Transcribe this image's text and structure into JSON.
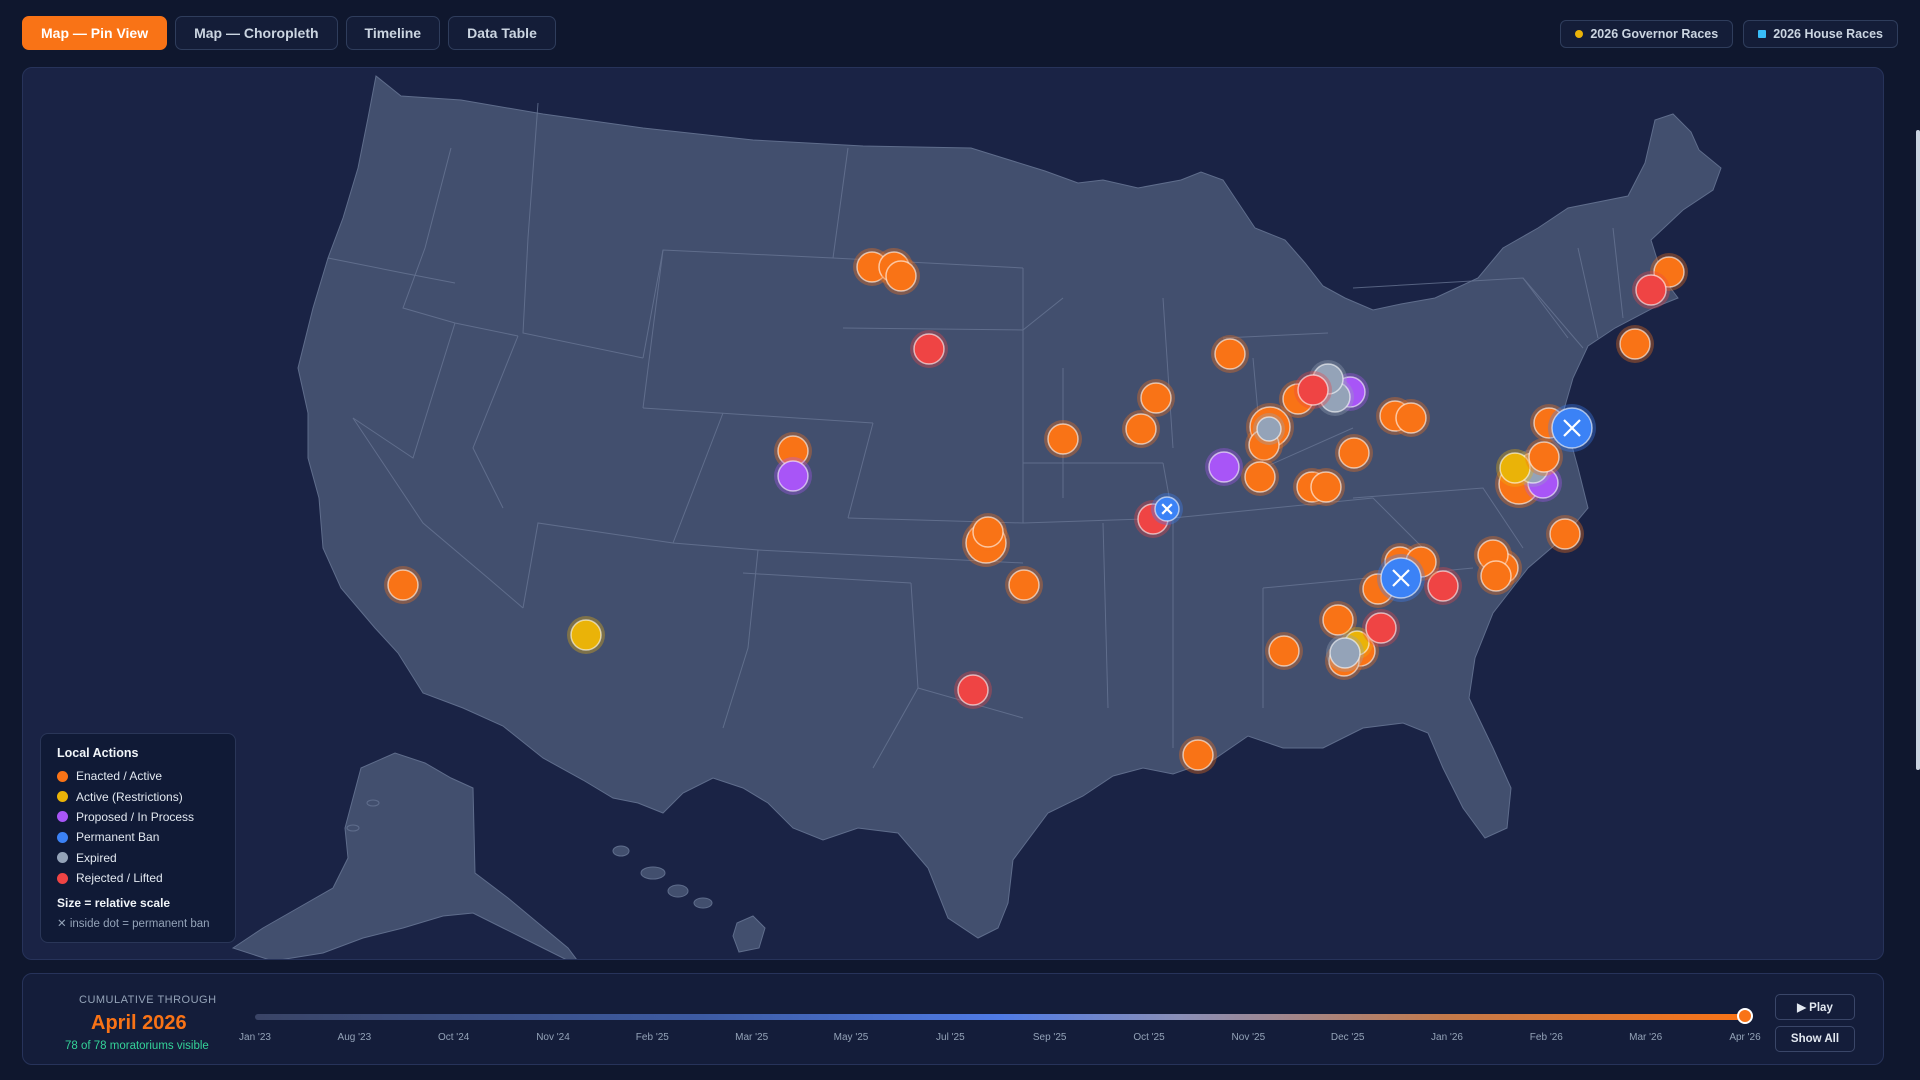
{
  "tabs": [
    {
      "label": "Map — Pin View",
      "active": true
    },
    {
      "label": "Map — Choropleth",
      "active": false
    },
    {
      "label": "Timeline",
      "active": false
    },
    {
      "label": "Data Table",
      "active": false
    }
  ],
  "overlays": [
    {
      "label": "2026 Governor Races",
      "color": "#eab308"
    },
    {
      "label": "2026 House Races",
      "color": "#38bdf8"
    }
  ],
  "legend": {
    "title": "Local Actions",
    "items": [
      {
        "label": "Enacted / Active",
        "color": "#f97316"
      },
      {
        "label": "Active (Restrictions)",
        "color": "#eab308"
      },
      {
        "label": "Proposed / In Process",
        "color": "#a855f7"
      },
      {
        "label": "Permanent Ban",
        "color": "#3b82f6"
      },
      {
        "label": "Expired",
        "color": "#94a3b8"
      },
      {
        "label": "Rejected / Lifted",
        "color": "#ef4444"
      }
    ],
    "size_note": "Size = relative scale",
    "x_note": "✕ inside dot = permanent ban"
  },
  "timeline": {
    "cumulative_label": "CUMULATIVE THROUGH",
    "current": "April 2026",
    "count_text": "78 of 78 moratoriums visible",
    "ticks": [
      "Jan '23",
      "Aug '23",
      "Oct '24",
      "Nov '24",
      "Feb '25",
      "Mar '25",
      "May '25",
      "Jul '25",
      "Sep '25",
      "Oct '25",
      "Nov '25",
      "Dec '25",
      "Jan '26",
      "Feb '26",
      "Mar '26",
      "Apr '26"
    ],
    "progress": 1.0,
    "play_label": "▶ Play",
    "show_all_label": "Show All"
  },
  "status_colors": {
    "enacted": "#f97316",
    "restrict": "#eab308",
    "proposed": "#a855f7",
    "ban": "#3b82f6",
    "expired": "#94a3b8",
    "rejected": "#ef4444"
  }
}
